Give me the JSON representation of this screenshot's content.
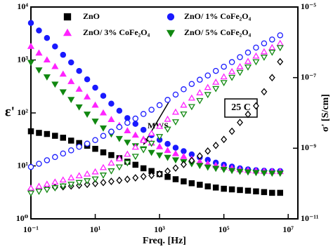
{
  "chart_data": {
    "type": "scatter",
    "x_label": "Freq. [Hz]",
    "y_label": "ε'",
    "y2_label": "σ' [S/cm]",
    "log_x": true,
    "log_y": true,
    "log_y2": true,
    "xlim": [
      0.1,
      20000000
    ],
    "ylim": [
      1,
      10000
    ],
    "y2lim": [
      1e-11,
      1e-05
    ],
    "xticks": [
      {
        "value": 0.1,
        "label": "10⁻¹"
      },
      {
        "value": 10,
        "label": "10¹"
      },
      {
        "value": 1000,
        "label": "10³"
      },
      {
        "value": 100000,
        "label": "10⁵"
      },
      {
        "value": 10000000,
        "label": "10⁷"
      }
    ],
    "yticks": [
      {
        "value": 1,
        "label": "10⁰"
      },
      {
        "value": 10,
        "label": "10¹"
      },
      {
        "value": 100,
        "label": "10²"
      },
      {
        "value": 1000,
        "label": "10³"
      },
      {
        "value": 10000,
        "label": "10⁴"
      }
    ],
    "y2ticks": [
      {
        "value": 1e-11,
        "label": "10⁻¹¹"
      },
      {
        "value": 1e-09,
        "label": "10⁻⁹"
      },
      {
        "value": 1e-07,
        "label": "10⁻⁷"
      },
      {
        "value": 1e-05,
        "label": "10⁻⁵"
      }
    ],
    "annotations": [
      "25 C",
      "MWS"
    ],
    "x": [
      0.1,
      0.178,
      0.316,
      0.562,
      1,
      1.78,
      3.16,
      5.62,
      10,
      17.8,
      31.6,
      56.2,
      100,
      178,
      316,
      562,
      1000,
      1780,
      3160,
      5620,
      10000,
      17800,
      31600,
      56200,
      100000,
      178000,
      316000,
      562000,
      1000000,
      1780000,
      3160000,
      5620000
    ],
    "series": [
      {
        "name": "ZnO",
        "color": "#000000",
        "marker": "square",
        "filled": true,
        "values": [
          45,
          42,
          40,
          37,
          34,
          30,
          27,
          24,
          21,
          18,
          16,
          14,
          12,
          10.5,
          9,
          8,
          7,
          6.2,
          5.6,
          5.1,
          4.7,
          4.4,
          4.1,
          3.9,
          3.7,
          3.6,
          3.5,
          3.4,
          3.3,
          3.2,
          3.1,
          3.1
        ]
      },
      {
        "name": "ZnO/ 1% CoFe₂O₄",
        "color": "#1a1aff",
        "marker": "circle",
        "filled": true,
        "values": [
          5000,
          3600,
          2600,
          1800,
          1250,
          900,
          620,
          430,
          300,
          210,
          150,
          110,
          80,
          62,
          48,
          38,
          31,
          26,
          22,
          19,
          16.5,
          14.5,
          13,
          11.5,
          10.5,
          9.7,
          9,
          8.6,
          8.3,
          8.1,
          8,
          8
        ]
      },
      {
        "name": "ZnO/ 3% CoFe₂O₄",
        "color": "#ff22ff",
        "marker": "triangle",
        "filled": true,
        "values": [
          1800,
          1350,
          1000,
          750,
          540,
          390,
          280,
          200,
          140,
          100,
          75,
          58,
          46,
          38,
          32,
          27,
          23,
          19.5,
          17,
          15,
          13.5,
          12,
          11,
          10.2,
          9.5,
          9,
          8.5,
          8.2,
          8,
          7.9,
          7.8,
          7.8
        ]
      },
      {
        "name": "ZnO/ 5% CoFe₂O₄",
        "color": "#118811",
        "marker": "triangle-down",
        "filled": true,
        "values": [
          900,
          650,
          480,
          350,
          250,
          180,
          130,
          95,
          70,
          52,
          40,
          33,
          28,
          24,
          21,
          18,
          16,
          14.5,
          13,
          12,
          11,
          10.2,
          9.5,
          9,
          8.6,
          8.2,
          7.9,
          7.7,
          7.5,
          7.4,
          7.3,
          7.3
        ]
      },
      {
        "color": "#000000",
        "marker": "diamond",
        "filled": false,
        "axis": "y2",
        "values": [
          6.8e-11,
          7.1e-11,
          7.4e-11,
          7.8e-11,
          8.1e-11,
          8.5e-11,
          8.9e-11,
          9.5e-11,
          1e-10,
          1.07e-10,
          1.15e-10,
          1.23e-10,
          1.32e-10,
          1.45e-10,
          1.58e-10,
          1.7e-10,
          1.86e-10,
          2.24e-10,
          2.75e-10,
          3.47e-10,
          4.47e-10,
          6.03e-10,
          8.32e-10,
          1.2e-09,
          1.78e-09,
          3.02e-09,
          5.37e-09,
          9.12e-09,
          1.58e-08,
          3.98e-08,
          1e-07,
          2.82e-07
        ]
      },
      {
        "color": "#1a1aff",
        "marker": "circle",
        "filled": false,
        "axis": "y2",
        "values": [
          2.95e-10,
          3.63e-10,
          4.57e-10,
          5.62e-10,
          7.08e-10,
          8.71e-10,
          1.1e-09,
          1.35e-09,
          1.7e-09,
          2.24e-09,
          2.95e-09,
          3.98e-09,
          5.25e-09,
          6.92e-09,
          9.33e-09,
          1.23e-08,
          1.66e-08,
          2.34e-08,
          3.31e-08,
          4.68e-08,
          6.61e-08,
          8.71e-08,
          1.15e-07,
          1.55e-07,
          2.04e-07,
          2.75e-07,
          3.8e-07,
          5.13e-07,
          7.08e-07,
          9.33e-07,
          1.2e-06,
          1.58e-06
        ]
      },
      {
        "color": "#ff22ff",
        "marker": "triangle",
        "filled": false,
        "axis": "y2",
        "values": [
          7.41e-11,
          8.32e-11,
          9.55e-11,
          1.1e-10,
          1.26e-10,
          1.45e-10,
          1.66e-10,
          1.86e-10,
          2.14e-10,
          2.82e-10,
          3.8e-10,
          5.01e-10,
          6.76e-10,
          1.07e-09,
          1.66e-09,
          2.63e-09,
          4.17e-09,
          6.61e-09,
          1.05e-08,
          1.66e-08,
          2.63e-08,
          3.72e-08,
          5.25e-08,
          7.41e-08,
          1.05e-07,
          1.48e-07,
          2.04e-07,
          2.88e-07,
          4.07e-07,
          5.37e-07,
          7.08e-07,
          9.33e-07
        ]
      },
      {
        "color": "#118811",
        "marker": "triangle-down",
        "filled": false,
        "axis": "y2",
        "values": [
          5.37e-11,
          6.03e-11,
          6.76e-11,
          7.59e-11,
          8.51e-11,
          9.55e-11,
          1.07e-10,
          1.2e-10,
          1.35e-10,
          1.74e-10,
          2.29e-10,
          2.95e-10,
          3.89e-10,
          5.89e-10,
          9.12e-10,
          1.38e-09,
          2.14e-09,
          3.47e-09,
          5.62e-09,
          9.33e-09,
          1.51e-08,
          2.24e-08,
          3.31e-08,
          4.9e-08,
          7.24e-08,
          1.02e-07,
          1.41e-07,
          2e-07,
          2.82e-07,
          3.8e-07,
          5.25e-07,
          7.08e-07
        ]
      }
    ]
  }
}
